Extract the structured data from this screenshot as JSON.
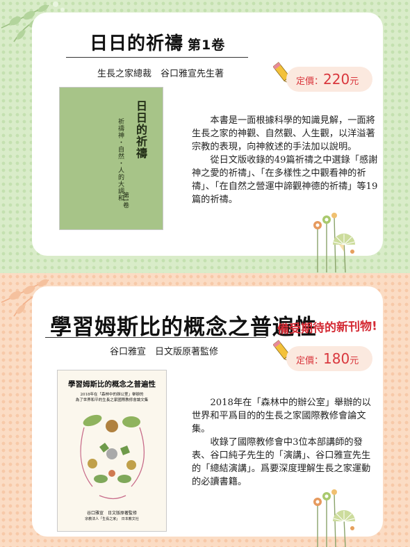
{
  "book1": {
    "title": "日日的祈禱",
    "volume": "第1卷",
    "author": "生長之家總裁　谷口雅宣先生著",
    "price": {
      "label": "定價：",
      "amount": "220",
      "currency": "元"
    },
    "cover": {
      "title": "日日的祈禱",
      "subtitle": "祈禱神・自然・人的大調和",
      "volume": "第1卷"
    },
    "description": [
      "本書是一面根據科學的知識見解，一面將生長之家的神觀、自然觀、人生觀，以洋溢著宗教的表現，向神敘述的手法加以說明。",
      "從日文版收錄的49篇祈禱之中選錄「感謝神之愛的祈禱」、「在多樣性之中觀看神的祈禱」、「在自然之營運中諦觀神德的祈禱」等19篇的祈禱。"
    ]
  },
  "book2": {
    "title": "學習姆斯比的概念之普遍性",
    "tagline": "備受期待的新刊物!",
    "author": "谷口雅宣　日文版原著監修",
    "price": {
      "label": "定價：",
      "amount": "180",
      "currency": "元"
    },
    "cover": {
      "title": "學習姆斯比的概念之普遍性",
      "line1": "2018年在「森林中的辦公室」舉辦的",
      "line2": "為了世界和平的生長之家國際教修會論文集",
      "bottom1": "谷口雅宣　日文版原著監修",
      "bottom2": "宗教法人「生長之家」　日本教文社"
    },
    "description": [
      "2018年在「森林中的辦公室」舉辦的以世界和平爲目的的生長之家國際教修會論文集。",
      "收錄了國際教修會中3位本部講師的發表、谷口純子先生的「演講」、谷口雅宣先生的「總結演講」。爲要深度理解生長之家運動的必讀書籍。"
    ]
  },
  "colors": {
    "top_background": "#d9ecc9",
    "bottom_background": "#fbdcc4",
    "price_text": "#d9373d",
    "tagline_text": "#d42a34",
    "cover1_green": "#a7c488"
  }
}
